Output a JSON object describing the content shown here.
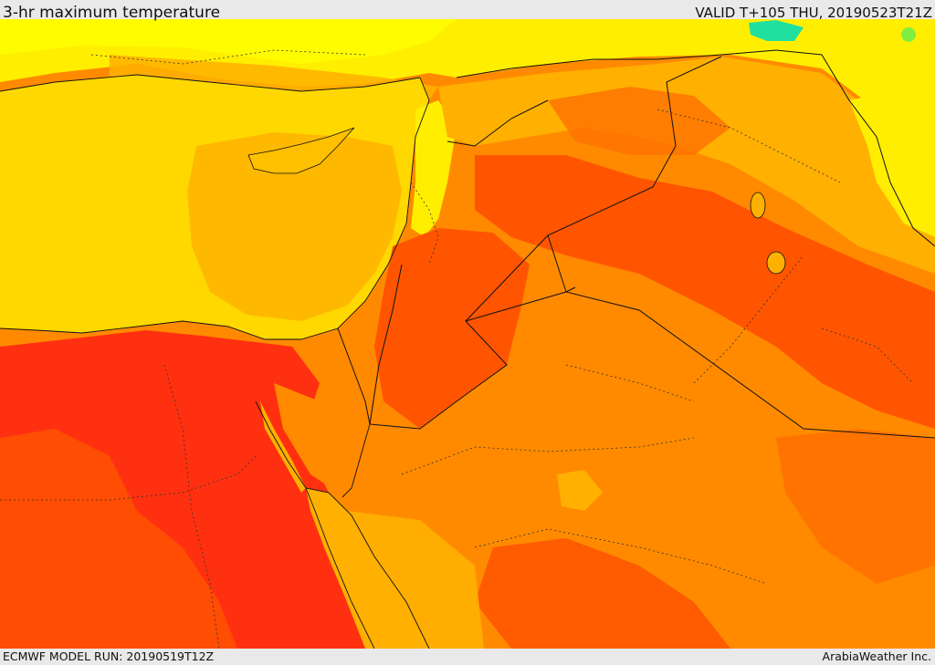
{
  "header": {
    "title": "3-hr maximum temperature",
    "valid_time": "VALID T+105 THU, 20190523T21Z"
  },
  "footer": {
    "model_run": "ECMWF MODEL RUN: 20190519T12Z",
    "credit": "ArabiaWeather Inc."
  },
  "map": {
    "parameter": "3-hr maximum temperature",
    "colors": {
      "sea_yellow": "#ffd800",
      "light_yellow": "#ffee00",
      "pale_yellow": "#ffff00",
      "amber": "#ffb000",
      "orange": "#ff8a00",
      "deep_orange": "#ff5500",
      "red": "#ff3010",
      "green": "#80ee40",
      "cyan_green": "#20e0a0",
      "border": "#111111"
    }
  }
}
